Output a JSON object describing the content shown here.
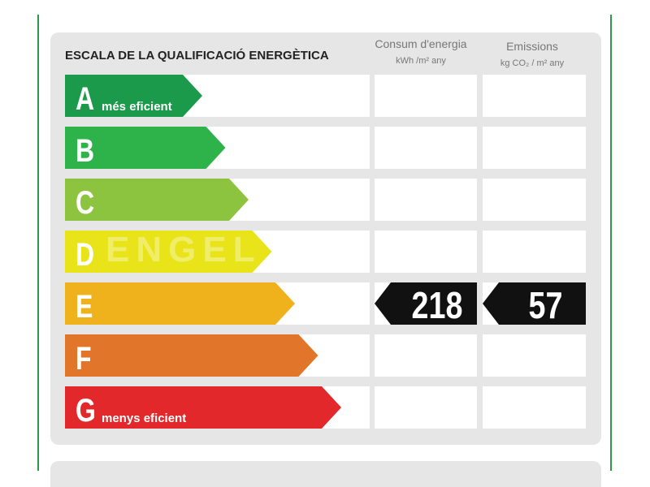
{
  "title": "ESCALA DE LA QUALIFICACIÓ ENERGÈTICA",
  "watermark": "ENGEL",
  "columns": [
    {
      "title": "Consum d'energia",
      "unit": "kWh /m² any"
    },
    {
      "title": "Emissions",
      "unit": "kg CO₂ / m² any"
    }
  ],
  "ratings": [
    {
      "letter": "A",
      "label": "més eficient",
      "color": "#1b9a4b"
    },
    {
      "letter": "B",
      "label": null,
      "color": "#2eb34a"
    },
    {
      "letter": "C",
      "label": null,
      "color": "#8dc43f"
    },
    {
      "letter": "D",
      "label": null,
      "color": "#e9e41a"
    },
    {
      "letter": "E",
      "label": null,
      "color": "#f0b21c"
    },
    {
      "letter": "F",
      "label": null,
      "color": "#e1762a"
    },
    {
      "letter": "G",
      "label": "menys eficient",
      "color": "#e3282b"
    }
  ],
  "current": {
    "rating": "E",
    "values": [
      218,
      57
    ]
  }
}
